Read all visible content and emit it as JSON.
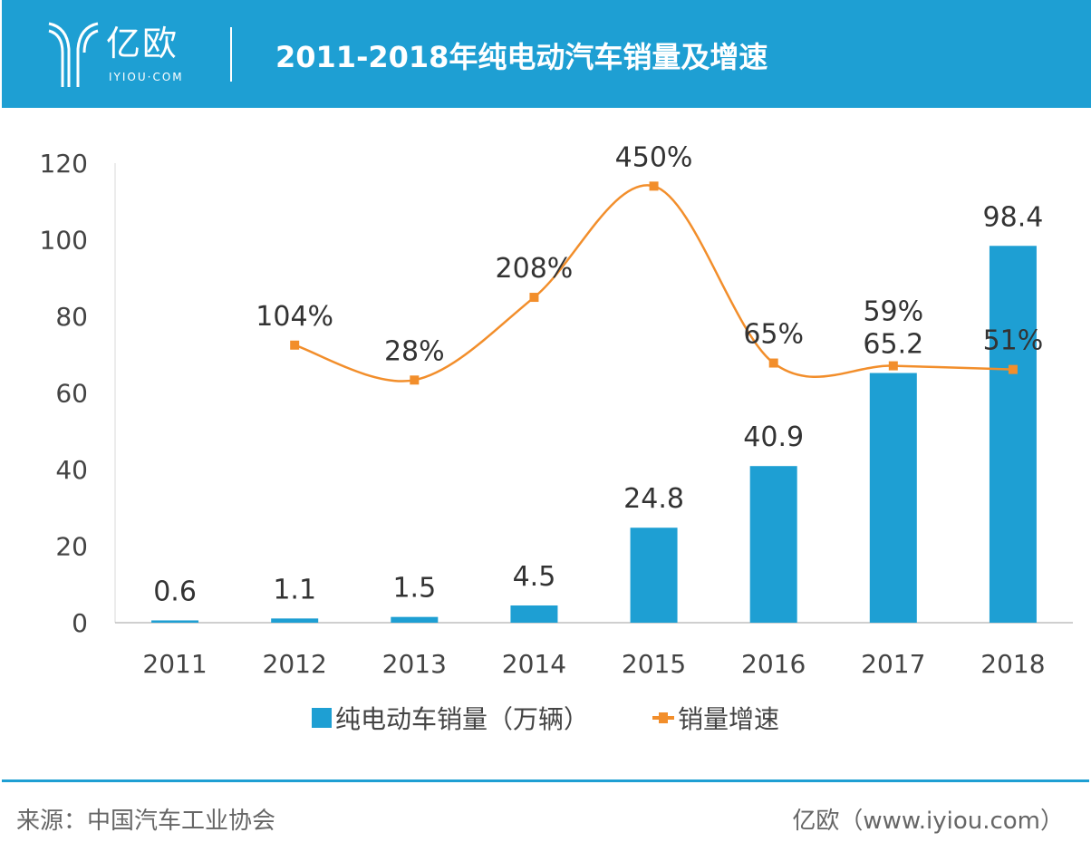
{
  "header": {
    "logo_text": "亿欧",
    "logo_sub": "IYIOU·COM",
    "title": "2011-2018年纯电动汽车销量及增速"
  },
  "chart_data": {
    "type": "bar+line",
    "title": "2011-2018年纯电动汽车销量及增速",
    "categories": [
      "2011",
      "2012",
      "2013",
      "2014",
      "2015",
      "2016",
      "2017",
      "2018"
    ],
    "ylim": [
      0,
      120
    ],
    "yticks": [
      0,
      20,
      40,
      60,
      80,
      100,
      120
    ],
    "y2lim": [
      -500,
      500
    ],
    "grid": false,
    "legend": "bottom",
    "series": [
      {
        "name": "纯电动车销量（万辆）",
        "type": "bar",
        "color": "#1e9fd3",
        "values": [
          0.6,
          1.1,
          1.5,
          4.5,
          24.8,
          40.9,
          65.2,
          98.4
        ],
        "labels": [
          "0.6",
          "1.1",
          "1.5",
          "4.5",
          "24.8",
          "40.9",
          "65.2",
          "98.4"
        ]
      },
      {
        "name": "销量增速",
        "type": "line",
        "color": "#f28e2b",
        "values": [
          null,
          104,
          28,
          208,
          450,
          65,
          59,
          51
        ],
        "labels": [
          "",
          "104%",
          "28%",
          "208%",
          "450%",
          "65%",
          "59%",
          "51%"
        ]
      }
    ]
  },
  "footer": {
    "source": "来源：中国汽车工业协会",
    "credit": "亿欧（www.iyiou.com）"
  }
}
